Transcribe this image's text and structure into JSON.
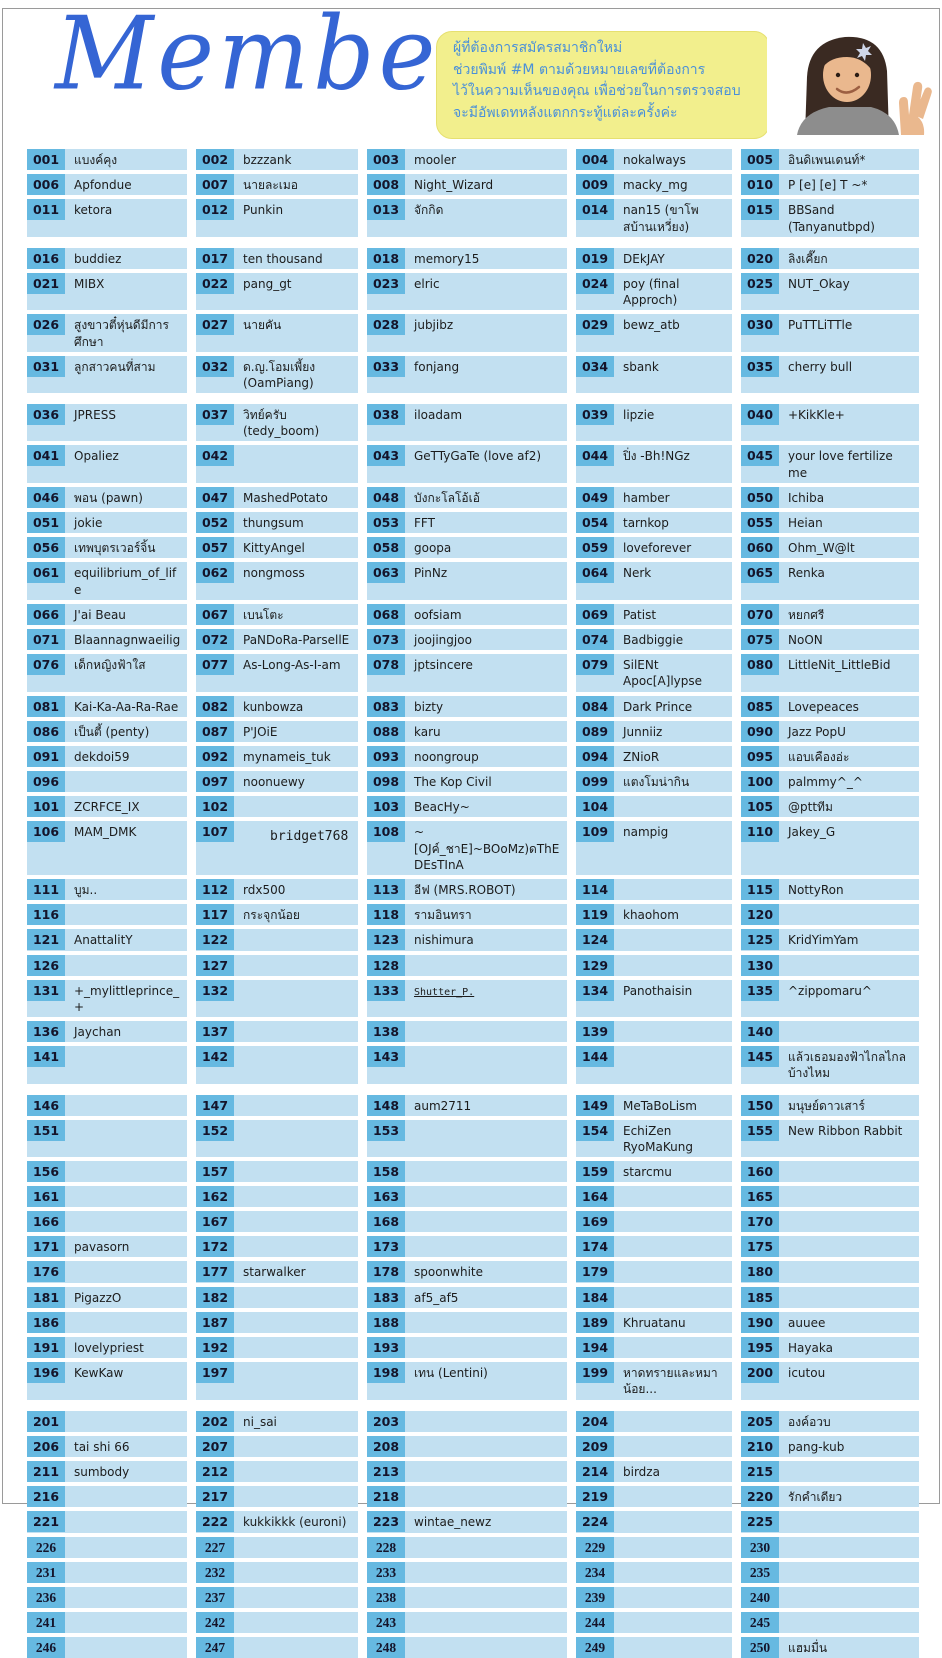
{
  "header": {
    "title": "Members",
    "bubble_lines": [
      "ผู้ที่ต้องการสมัครสมาชิกใหม่",
      "ช่วยพิมพ์ #M ตามด้วยหมายเลขที่ต้องการ",
      "ไว้ในความเห็นของคุณ เพื่อช่วยในการตรวจสอบ",
      "จะมีอัพเดทหลังแตกกระทู้แต่ละครั้งค่ะ"
    ],
    "photo": "girl-peace-sign-photo"
  },
  "colors": {
    "title_blue": "#3565d4",
    "bubble_bg": "#f2ef8d",
    "bubble_text": "#4a90d9",
    "badge_blue": "#66b9e1",
    "cell_blue": "#c2e0f1"
  },
  "members": [
    [
      "001",
      "แบงค์คุง"
    ],
    [
      "002",
      "bzzzank"
    ],
    [
      "003",
      "mooler"
    ],
    [
      "004",
      "nokalways"
    ],
    [
      "005",
      "อินดิเพนเดนท์*"
    ],
    [
      "006",
      "Apfondue"
    ],
    [
      "007",
      "นายละเมอ"
    ],
    [
      "008",
      "Night_Wizard"
    ],
    [
      "009",
      "macky_mg"
    ],
    [
      "010",
      "P [e] [e] T ~*"
    ],
    [
      "011",
      "ketora"
    ],
    [
      "012",
      "Punkin"
    ],
    [
      "013",
      "จักกิด"
    ],
    [
      "014",
      "nan15 (ขาโพสบ้านเหวี่ยง)"
    ],
    [
      "015",
      "BBSand (Tanyanutbpd)"
    ],
    [
      "016",
      "buddiez"
    ],
    [
      "017",
      "ten thousand"
    ],
    [
      "018",
      "memory15"
    ],
    [
      "019",
      "DEkJAY"
    ],
    [
      "020",
      "ลิงเคี๊ยก"
    ],
    [
      "021",
      "MIBX"
    ],
    [
      "022",
      "pang_gt"
    ],
    [
      "023",
      "elric"
    ],
    [
      "024",
      "poy (final Approch)"
    ],
    [
      "025",
      "NUT_Okay"
    ],
    [
      "026",
      "สูงขาวตี๋หุ่นดีมีการศึกษา"
    ],
    [
      "027",
      "นายคัน"
    ],
    [
      "028",
      "jubjibz"
    ],
    [
      "029",
      "bewz_atb"
    ],
    [
      "030",
      "PuTTLiTTle"
    ],
    [
      "031",
      "ลูกสาวคนที่สาม"
    ],
    [
      "032",
      "ด.ญ.โอมเพี้ยง (OamPiang)"
    ],
    [
      "033",
      "fonjang"
    ],
    [
      "034",
      "sbank"
    ],
    [
      "035",
      "cherry bull"
    ],
    [
      "036",
      "JPRESS"
    ],
    [
      "037",
      "วิทย์ครับ (tedy_boom)"
    ],
    [
      "038",
      "iloadam"
    ],
    [
      "039",
      "lipzie"
    ],
    [
      "040",
      "+KikKle+"
    ],
    [
      "041",
      "Opaliez"
    ],
    [
      "042",
      ""
    ],
    [
      "043",
      "GeTTyGaTe (love af2)"
    ],
    [
      "044",
      "ปิ่ง -Bh!NGz"
    ],
    [
      "045",
      "your love fertilize me"
    ],
    [
      "046",
      "พอน (pawn)"
    ],
    [
      "047",
      "MashedPotato"
    ],
    [
      "048",
      "บังกะโลโอ้เอ้"
    ],
    [
      "049",
      "hamber"
    ],
    [
      "050",
      "Ichiba"
    ],
    [
      "051",
      "jokie"
    ],
    [
      "052",
      "thungsum"
    ],
    [
      "053",
      "FFT"
    ],
    [
      "054",
      "tarnkop"
    ],
    [
      "055",
      "Heian"
    ],
    [
      "056",
      "เทพบุตรเวอร์จิ้น"
    ],
    [
      "057",
      "KittyAngel"
    ],
    [
      "058",
      "goopa"
    ],
    [
      "059",
      "loveforever"
    ],
    [
      "060",
      "Ohm_W@lt"
    ],
    [
      "061",
      "equilibrium_of_life"
    ],
    [
      "062",
      "nongmoss"
    ],
    [
      "063",
      "PinNz"
    ],
    [
      "064",
      "Nerk"
    ],
    [
      "065",
      "Renka"
    ],
    [
      "066",
      "J'ai Beau"
    ],
    [
      "067",
      "เบนโตะ"
    ],
    [
      "068",
      "oofsiam"
    ],
    [
      "069",
      "Patist"
    ],
    [
      "070",
      "หยกศรี"
    ],
    [
      "071",
      "Blaannagnwaeilig"
    ],
    [
      "072",
      "PaNDoRa-ParsellE"
    ],
    [
      "073",
      "joojingjoo"
    ],
    [
      "074",
      "Badbiggie"
    ],
    [
      "075",
      "NoON"
    ],
    [
      "076",
      "เด็กหญิงฟ้าใส"
    ],
    [
      "077",
      "As-Long-As-I-am"
    ],
    [
      "078",
      "jptsincere"
    ],
    [
      "079",
      "SilENt Apoc[A]lypse"
    ],
    [
      "080",
      "LittleNit_LittleBid"
    ],
    [
      "081",
      "Kai-Ka-Aa-Ra-Rae"
    ],
    [
      "082",
      "kunbowza"
    ],
    [
      "083",
      "bizty"
    ],
    [
      "084",
      "Dark Prince"
    ],
    [
      "085",
      "Lovepeaces"
    ],
    [
      "086",
      "เป็นตี้ (penty)"
    ],
    [
      "087",
      "P'JOiE"
    ],
    [
      "088",
      "karu"
    ],
    [
      "089",
      "Junniiz"
    ],
    [
      "090",
      "Jazz PopU"
    ],
    [
      "091",
      "dekdoi59"
    ],
    [
      "092",
      "mynameis_tuk"
    ],
    [
      "093",
      "noongroup"
    ],
    [
      "094",
      "ZNioR"
    ],
    [
      "095",
      "แอบเคืองอ่ะ"
    ],
    [
      "096",
      ""
    ],
    [
      "097",
      "noonuewy"
    ],
    [
      "098",
      "The Kop Civil"
    ],
    [
      "099",
      "แตงโมน่ากิน"
    ],
    [
      "100",
      "palmmy^_^"
    ],
    [
      "101",
      "ZCRFCE_IX"
    ],
    [
      "102",
      ""
    ],
    [
      "103",
      "BeacHy~"
    ],
    [
      "104",
      ""
    ],
    [
      "105",
      "@pttทีม"
    ],
    [
      "106",
      "MAM_DMK"
    ],
    [
      "107",
      "bridget768"
    ],
    [
      "108",
      "~[OJค์_ชาE]~BOoMz)ดThE DEsTInA"
    ],
    [
      "109",
      "nampig"
    ],
    [
      "110",
      "Jakey_G"
    ],
    [
      "111",
      "บูม.."
    ],
    [
      "112",
      "rdx500"
    ],
    [
      "113",
      "อีฟ (MRS.ROBOT)"
    ],
    [
      "114",
      ""
    ],
    [
      "115",
      "NottyRon"
    ],
    [
      "116",
      ""
    ],
    [
      "117",
      "กระจุกน้อย"
    ],
    [
      "118",
      "รามอินทรา"
    ],
    [
      "119",
      "khaohom"
    ],
    [
      "120",
      ""
    ],
    [
      "121",
      "AnattalitY"
    ],
    [
      "122",
      ""
    ],
    [
      "123",
      "nishimura"
    ],
    [
      "124",
      ""
    ],
    [
      "125",
      "KridYimYam"
    ],
    [
      "126",
      ""
    ],
    [
      "127",
      ""
    ],
    [
      "128",
      ""
    ],
    [
      "129",
      ""
    ],
    [
      "130",
      ""
    ],
    [
      "131",
      "+_mylittleprince_+"
    ],
    [
      "132",
      ""
    ],
    [
      "133",
      "Shutter_P."
    ],
    [
      "134",
      "Panothaisin"
    ],
    [
      "135",
      "^zippomaru^"
    ],
    [
      "136",
      "Jaychan"
    ],
    [
      "137",
      ""
    ],
    [
      "138",
      ""
    ],
    [
      "139",
      ""
    ],
    [
      "140",
      ""
    ],
    [
      "141",
      ""
    ],
    [
      "142",
      ""
    ],
    [
      "143",
      ""
    ],
    [
      "144",
      ""
    ],
    [
      "145",
      "แล้วเธอมองฟ้าไกลไกลบ้างไหม"
    ],
    [
      "146",
      ""
    ],
    [
      "147",
      ""
    ],
    [
      "148",
      "aum2711"
    ],
    [
      "149",
      "MeTaBoLism"
    ],
    [
      "150",
      "มนุษย์ดาวเสาร์"
    ],
    [
      "151",
      ""
    ],
    [
      "152",
      ""
    ],
    [
      "153",
      ""
    ],
    [
      "154",
      "EchiZen RyoMaKung"
    ],
    [
      "155",
      "New Ribbon Rabbit"
    ],
    [
      "156",
      ""
    ],
    [
      "157",
      ""
    ],
    [
      "158",
      ""
    ],
    [
      "159",
      "starcmu"
    ],
    [
      "160",
      ""
    ],
    [
      "161",
      ""
    ],
    [
      "162",
      ""
    ],
    [
      "163",
      ""
    ],
    [
      "164",
      ""
    ],
    [
      "165",
      ""
    ],
    [
      "166",
      ""
    ],
    [
      "167",
      ""
    ],
    [
      "168",
      ""
    ],
    [
      "169",
      ""
    ],
    [
      "170",
      ""
    ],
    [
      "171",
      "pavasorn"
    ],
    [
      "172",
      ""
    ],
    [
      "173",
      ""
    ],
    [
      "174",
      ""
    ],
    [
      "175",
      ""
    ],
    [
      "176",
      ""
    ],
    [
      "177",
      "starwalker"
    ],
    [
      "178",
      "spoonwhite"
    ],
    [
      "179",
      ""
    ],
    [
      "180",
      ""
    ],
    [
      "181",
      "PigazzO"
    ],
    [
      "182",
      ""
    ],
    [
      "183",
      "af5_af5"
    ],
    [
      "184",
      ""
    ],
    [
      "185",
      ""
    ],
    [
      "186",
      ""
    ],
    [
      "187",
      ""
    ],
    [
      "188",
      ""
    ],
    [
      "189",
      "Khruatanu"
    ],
    [
      "190",
      "auuee"
    ],
    [
      "191",
      "lovelypriest"
    ],
    [
      "192",
      ""
    ],
    [
      "193",
      ""
    ],
    [
      "194",
      ""
    ],
    [
      "195",
      "Hayaka"
    ],
    [
      "196",
      "KewKaw"
    ],
    [
      "197",
      ""
    ],
    [
      "198",
      "เทน (Lentini)"
    ],
    [
      "199",
      "หาดทรายและหมาน้อย..."
    ],
    [
      "200",
      "icutou"
    ],
    [
      "201",
      ""
    ],
    [
      "202",
      "ni_sai"
    ],
    [
      "203",
      ""
    ],
    [
      "204",
      ""
    ],
    [
      "205",
      "องค์อวบ"
    ],
    [
      "206",
      "tai shi 66"
    ],
    [
      "207",
      ""
    ],
    [
      "208",
      ""
    ],
    [
      "209",
      ""
    ],
    [
      "210",
      "pang-kub"
    ],
    [
      "211",
      "sumbody"
    ],
    [
      "212",
      ""
    ],
    [
      "213",
      ""
    ],
    [
      "214",
      "birdza"
    ],
    [
      "215",
      ""
    ],
    [
      "216",
      ""
    ],
    [
      "217",
      ""
    ],
    [
      "218",
      ""
    ],
    [
      "219",
      ""
    ],
    [
      "220",
      "รักคำเดียว"
    ],
    [
      "221",
      ""
    ],
    [
      "222",
      "kukkikkk (euroni)"
    ],
    [
      "223",
      "wintae_newz"
    ],
    [
      "224",
      ""
    ],
    [
      "225",
      ""
    ],
    [
      "226",
      ""
    ],
    [
      "227",
      ""
    ],
    [
      "228",
      ""
    ],
    [
      "229",
      ""
    ],
    [
      "230",
      ""
    ],
    [
      "231",
      ""
    ],
    [
      "232",
      ""
    ],
    [
      "233",
      ""
    ],
    [
      "234",
      ""
    ],
    [
      "235",
      ""
    ],
    [
      "236",
      ""
    ],
    [
      "237",
      ""
    ],
    [
      "238",
      ""
    ],
    [
      "239",
      ""
    ],
    [
      "240",
      ""
    ],
    [
      "241",
      ""
    ],
    [
      "242",
      ""
    ],
    [
      "243",
      ""
    ],
    [
      "244",
      ""
    ],
    [
      "245",
      ""
    ],
    [
      "246",
      ""
    ],
    [
      "247",
      ""
    ],
    [
      "248",
      ""
    ],
    [
      "249",
      ""
    ],
    [
      "250",
      "แฮมมื่น"
    ]
  ]
}
